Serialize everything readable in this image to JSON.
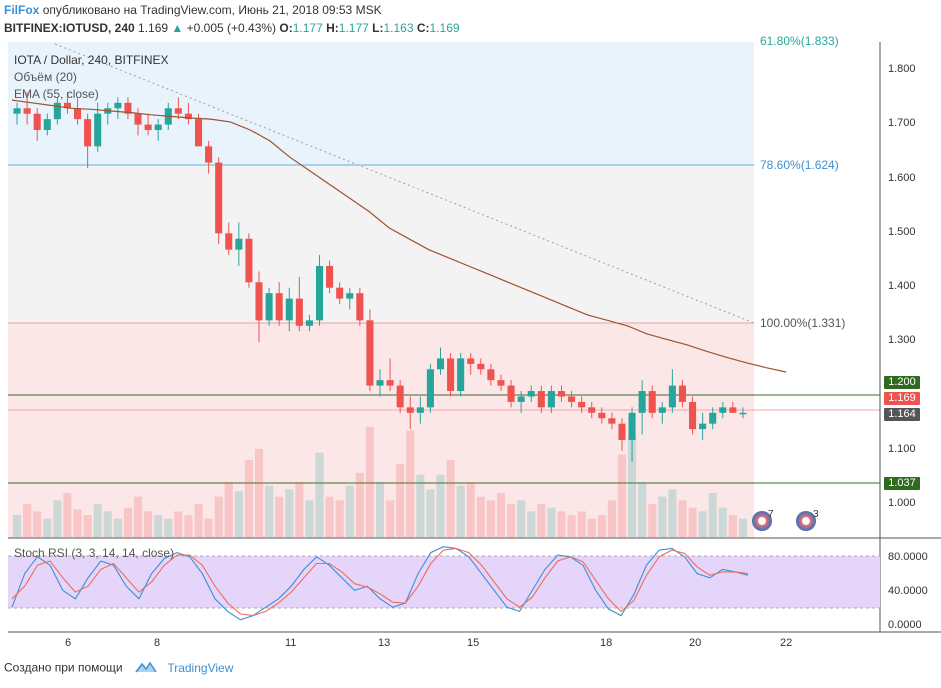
{
  "header": {
    "brand": "FilFox",
    "published": "опубликовано на TradingView.com, Июнь 21, 2018 09:53 MSK",
    "symbol": "BITFINEX:IOTUSD, 240",
    "last": "1.169",
    "arrow": "▲",
    "change": "+0.005 (+0.43%)",
    "o_label": "O:",
    "o_val": "1.177",
    "h_label": "H:",
    "h_val": "1.177",
    "l_label": "L:",
    "l_val": "1.163",
    "c_label": "C:",
    "c_val": "1.169"
  },
  "legend": {
    "title": "IOTA / Dollar, 240, BITFINEX",
    "volume": "Объём (20)",
    "ema": "EMA (55, close)"
  },
  "fib": {
    "level_786": "78.60%(1.624)",
    "level_100": "100.00%(1.331)",
    "top_label": "61.80%(1.833)"
  },
  "price_axis": [
    "1.800",
    "1.700",
    "1.600",
    "1.500",
    "1.400",
    "1.300",
    "1.100",
    "1.000"
  ],
  "price_tags": {
    "resistance": "1.200",
    "last": "1.169",
    "bid": "1.164",
    "support": "1.037"
  },
  "time_axis": [
    "6",
    "8",
    "11",
    "13",
    "15",
    "18",
    "20",
    "22"
  ],
  "stoch": {
    "title": "Stoch RSI (3, 3, 14, 14, close)",
    "axis": [
      "80.0000",
      "40.0000",
      "0.0000"
    ]
  },
  "events": [
    "7",
    "3"
  ],
  "footer": {
    "created": "Создано при помощи",
    "brand": "TradingView"
  },
  "colors": {
    "up": "#26a69a",
    "down": "#ef5350",
    "accent": "#3d8fd1",
    "ema": "#a0522d",
    "stoch_k": "#3d8fd1",
    "stoch_d": "#ef6c5a",
    "stoch_band": "#d8c5f5"
  },
  "chart_data": {
    "type": "candlestick",
    "price_range": [
      0.96,
      1.85
    ],
    "candles": [
      [
        1.72,
        1.74,
        1.7,
        1.73
      ],
      [
        1.73,
        1.76,
        1.7,
        1.72
      ],
      [
        1.72,
        1.73,
        1.67,
        1.69
      ],
      [
        1.69,
        1.72,
        1.68,
        1.71
      ],
      [
        1.71,
        1.75,
        1.7,
        1.74
      ],
      [
        1.74,
        1.76,
        1.72,
        1.73
      ],
      [
        1.73,
        1.75,
        1.7,
        1.71
      ],
      [
        1.71,
        1.72,
        1.62,
        1.66
      ],
      [
        1.66,
        1.74,
        1.65,
        1.72
      ],
      [
        1.72,
        1.74,
        1.7,
        1.73
      ],
      [
        1.73,
        1.75,
        1.71,
        1.74
      ],
      [
        1.74,
        1.75,
        1.71,
        1.72
      ],
      [
        1.72,
        1.73,
        1.68,
        1.7
      ],
      [
        1.7,
        1.72,
        1.68,
        1.69
      ],
      [
        1.69,
        1.71,
        1.67,
        1.7
      ],
      [
        1.7,
        1.74,
        1.69,
        1.73
      ],
      [
        1.73,
        1.75,
        1.71,
        1.72
      ],
      [
        1.72,
        1.74,
        1.7,
        1.71
      ],
      [
        1.71,
        1.72,
        1.66,
        1.66
      ],
      [
        1.66,
        1.67,
        1.61,
        1.63
      ],
      [
        1.63,
        1.64,
        1.48,
        1.5
      ],
      [
        1.5,
        1.52,
        1.46,
        1.47
      ],
      [
        1.47,
        1.52,
        1.44,
        1.49
      ],
      [
        1.49,
        1.5,
        1.4,
        1.41
      ],
      [
        1.41,
        1.43,
        1.3,
        1.34
      ],
      [
        1.34,
        1.4,
        1.33,
        1.39
      ],
      [
        1.39,
        1.41,
        1.33,
        1.34
      ],
      [
        1.34,
        1.4,
        1.32,
        1.38
      ],
      [
        1.38,
        1.42,
        1.32,
        1.33
      ],
      [
        1.33,
        1.35,
        1.32,
        1.34
      ],
      [
        1.34,
        1.46,
        1.33,
        1.44
      ],
      [
        1.44,
        1.45,
        1.39,
        1.4
      ],
      [
        1.4,
        1.41,
        1.37,
        1.38
      ],
      [
        1.38,
        1.4,
        1.36,
        1.39
      ],
      [
        1.39,
        1.4,
        1.33,
        1.34
      ],
      [
        1.34,
        1.36,
        1.21,
        1.22
      ],
      [
        1.22,
        1.25,
        1.2,
        1.23
      ],
      [
        1.23,
        1.27,
        1.21,
        1.22
      ],
      [
        1.22,
        1.23,
        1.17,
        1.18
      ],
      [
        1.18,
        1.2,
        1.14,
        1.17
      ],
      [
        1.17,
        1.2,
        1.15,
        1.18
      ],
      [
        1.18,
        1.26,
        1.17,
        1.25
      ],
      [
        1.25,
        1.29,
        1.24,
        1.27
      ],
      [
        1.27,
        1.28,
        1.2,
        1.21
      ],
      [
        1.21,
        1.28,
        1.2,
        1.27
      ],
      [
        1.27,
        1.28,
        1.24,
        1.26
      ],
      [
        1.26,
        1.27,
        1.24,
        1.25
      ],
      [
        1.25,
        1.26,
        1.22,
        1.23
      ],
      [
        1.23,
        1.24,
        1.21,
        1.22
      ],
      [
        1.22,
        1.23,
        1.18,
        1.19
      ],
      [
        1.19,
        1.21,
        1.17,
        1.2
      ],
      [
        1.2,
        1.22,
        1.19,
        1.21
      ],
      [
        1.21,
        1.22,
        1.17,
        1.18
      ],
      [
        1.18,
        1.22,
        1.17,
        1.21
      ],
      [
        1.21,
        1.22,
        1.19,
        1.2
      ],
      [
        1.2,
        1.21,
        1.18,
        1.19
      ],
      [
        1.19,
        1.2,
        1.17,
        1.18
      ],
      [
        1.18,
        1.19,
        1.16,
        1.17
      ],
      [
        1.17,
        1.18,
        1.15,
        1.16
      ],
      [
        1.16,
        1.17,
        1.14,
        1.15
      ],
      [
        1.15,
        1.16,
        1.1,
        1.12
      ],
      [
        1.12,
        1.18,
        1.08,
        1.17
      ],
      [
        1.17,
        1.23,
        1.13,
        1.21
      ],
      [
        1.21,
        1.22,
        1.16,
        1.17
      ],
      [
        1.17,
        1.19,
        1.15,
        1.18
      ],
      [
        1.18,
        1.25,
        1.17,
        1.22
      ],
      [
        1.22,
        1.23,
        1.18,
        1.19
      ],
      [
        1.19,
        1.2,
        1.13,
        1.14
      ],
      [
        1.14,
        1.17,
        1.12,
        1.15
      ],
      [
        1.15,
        1.18,
        1.14,
        1.17
      ],
      [
        1.17,
        1.19,
        1.16,
        1.18
      ],
      [
        1.18,
        1.19,
        1.17,
        1.17
      ],
      [
        1.17,
        1.18,
        1.16,
        1.17
      ]
    ],
    "ema": [
      1.745,
      1.74,
      1.735,
      1.73,
      1.728,
      1.725,
      1.722,
      1.718,
      1.715,
      1.712,
      1.71,
      1.705,
      1.69,
      1.67,
      1.64,
      1.615,
      1.59,
      1.565,
      1.54,
      1.51,
      1.49,
      1.47,
      1.455,
      1.44,
      1.425,
      1.41,
      1.395,
      1.38,
      1.365,
      1.35,
      1.34,
      1.33,
      1.315,
      1.305,
      1.295,
      1.283,
      1.272,
      1.262,
      1.253,
      1.245
    ],
    "volume": [
      12,
      18,
      14,
      10,
      20,
      24,
      15,
      12,
      18,
      14,
      10,
      16,
      22,
      14,
      12,
      10,
      14,
      12,
      18,
      10,
      22,
      30,
      25,
      42,
      48,
      28,
      22,
      26,
      30,
      20,
      46,
      22,
      20,
      28,
      35,
      60,
      30,
      20,
      40,
      58,
      34,
      26,
      34,
      42,
      28,
      30,
      22,
      20,
      24,
      18,
      20,
      14,
      18,
      16,
      14,
      12,
      14,
      10,
      12,
      20,
      45,
      55,
      30,
      18,
      22,
      26,
      20,
      16,
      14,
      24,
      16,
      12,
      10
    ],
    "stoch_k": [
      20,
      60,
      80,
      70,
      40,
      30,
      55,
      75,
      70,
      45,
      30,
      60,
      78,
      85,
      80,
      60,
      30,
      15,
      5,
      10,
      20,
      30,
      45,
      65,
      80,
      70,
      55,
      40,
      45,
      30,
      20,
      25,
      60,
      85,
      92,
      90,
      80,
      60,
      40,
      20,
      15,
      40,
      65,
      82,
      80,
      70,
      40,
      18,
      10,
      35,
      70,
      88,
      90,
      80,
      60,
      55,
      65,
      62,
      58
    ],
    "stoch_d": [
      30,
      45,
      70,
      75,
      55,
      38,
      45,
      65,
      72,
      55,
      38,
      50,
      70,
      82,
      82,
      70,
      45,
      25,
      12,
      10,
      15,
      25,
      38,
      55,
      72,
      72,
      62,
      48,
      44,
      36,
      26,
      25,
      45,
      72,
      88,
      90,
      85,
      70,
      50,
      30,
      20,
      32,
      55,
      75,
      80,
      74,
      52,
      30,
      15,
      28,
      58,
      80,
      88,
      84,
      68,
      58,
      62,
      62,
      60
    ],
    "stoch_bounds": [
      20,
      80
    ]
  }
}
